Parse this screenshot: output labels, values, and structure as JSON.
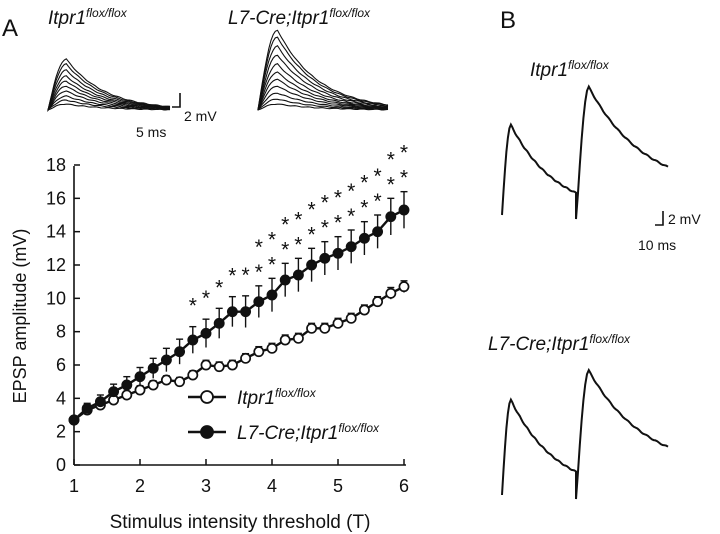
{
  "panels": {
    "a": {
      "label": "A"
    },
    "b": {
      "label": "B"
    }
  },
  "geno": {
    "control": {
      "base": "Itpr1",
      "sup": "flox/flox"
    },
    "mutant": {
      "base": "L7-Cre;Itpr1",
      "sup": "flox/flox"
    }
  },
  "scalebars": {
    "a_v": "2 mV",
    "a_t": "5 ms",
    "b_v": "2 mV",
    "b_t": "10 ms"
  },
  "chart_data": {
    "type": "line",
    "xlabel": "Stimulus intensity threshold (T)",
    "ylabel": "EPSP amplitude (mV)",
    "xlim": [
      1,
      6
    ],
    "ylim": [
      0,
      18
    ],
    "xticks": [
      "1",
      "2",
      "3",
      "4",
      "5",
      "6"
    ],
    "yticks": [
      "0",
      "2",
      "4",
      "6",
      "8",
      "10",
      "12",
      "14",
      "16",
      "18"
    ],
    "legend_position": "bottom-right",
    "x": [
      1.0,
      1.2,
      1.4,
      1.6,
      1.8,
      2.0,
      2.2,
      2.4,
      2.6,
      2.8,
      3.0,
      3.2,
      3.4,
      3.6,
      3.8,
      4.0,
      4.2,
      4.4,
      4.6,
      4.8,
      5.0,
      5.2,
      5.4,
      5.6,
      5.8,
      6.0
    ],
    "series": [
      {
        "name": "Itpr1 flox/flox",
        "marker": "open-circle",
        "color": "#111111",
        "values": [
          2.7,
          3.3,
          3.6,
          3.9,
          4.2,
          4.5,
          4.8,
          5.1,
          5.0,
          5.4,
          6.0,
          5.9,
          6.0,
          6.4,
          6.8,
          7.0,
          7.5,
          7.6,
          8.2,
          8.2,
          8.5,
          8.8,
          9.3,
          9.8,
          10.3,
          10.7
        ],
        "errors": [
          0.15,
          0.2,
          0.2,
          0.22,
          0.22,
          0.25,
          0.25,
          0.25,
          0.25,
          0.25,
          0.28,
          0.28,
          0.28,
          0.28,
          0.3,
          0.3,
          0.3,
          0.3,
          0.3,
          0.3,
          0.3,
          0.3,
          0.3,
          0.3,
          0.35,
          0.35
        ]
      },
      {
        "name": "L7-Cre;Itpr1 flox/flox",
        "marker": "filled-circle",
        "color": "#111111",
        "values": [
          2.7,
          3.4,
          3.8,
          4.4,
          4.8,
          5.3,
          5.8,
          6.3,
          6.8,
          7.5,
          7.9,
          8.5,
          9.2,
          9.2,
          9.8,
          10.2,
          11.1,
          11.4,
          12.0,
          12.4,
          12.7,
          13.1,
          13.6,
          14.0,
          14.9,
          15.3
        ],
        "errors": [
          0.2,
          0.3,
          0.4,
          0.45,
          0.5,
          0.55,
          0.6,
          0.7,
          0.75,
          0.8,
          0.85,
          0.9,
          0.9,
          0.95,
          0.95,
          1.0,
          1.0,
          1.0,
          1.0,
          1.0,
          1.0,
          1.0,
          1.0,
          1.0,
          1.1,
          1.1
        ]
      }
    ],
    "significance": [
      {
        "x": 2.8,
        "mark": "*"
      },
      {
        "x": 3.0,
        "mark": "*"
      },
      {
        "x": 3.2,
        "mark": "*"
      },
      {
        "x": 3.4,
        "mark": "*"
      },
      {
        "x": 3.6,
        "mark": "*"
      },
      {
        "x": 3.8,
        "mark": "**"
      },
      {
        "x": 4.0,
        "mark": "**"
      },
      {
        "x": 4.2,
        "mark": "**"
      },
      {
        "x": 4.4,
        "mark": "**"
      },
      {
        "x": 4.6,
        "mark": "**"
      },
      {
        "x": 4.8,
        "mark": "**"
      },
      {
        "x": 5.0,
        "mark": "**"
      },
      {
        "x": 5.2,
        "mark": "**"
      },
      {
        "x": 5.4,
        "mark": "**"
      },
      {
        "x": 5.6,
        "mark": "**"
      },
      {
        "x": 5.8,
        "mark": "**"
      },
      {
        "x": 6.0,
        "mark": "**"
      }
    ]
  }
}
